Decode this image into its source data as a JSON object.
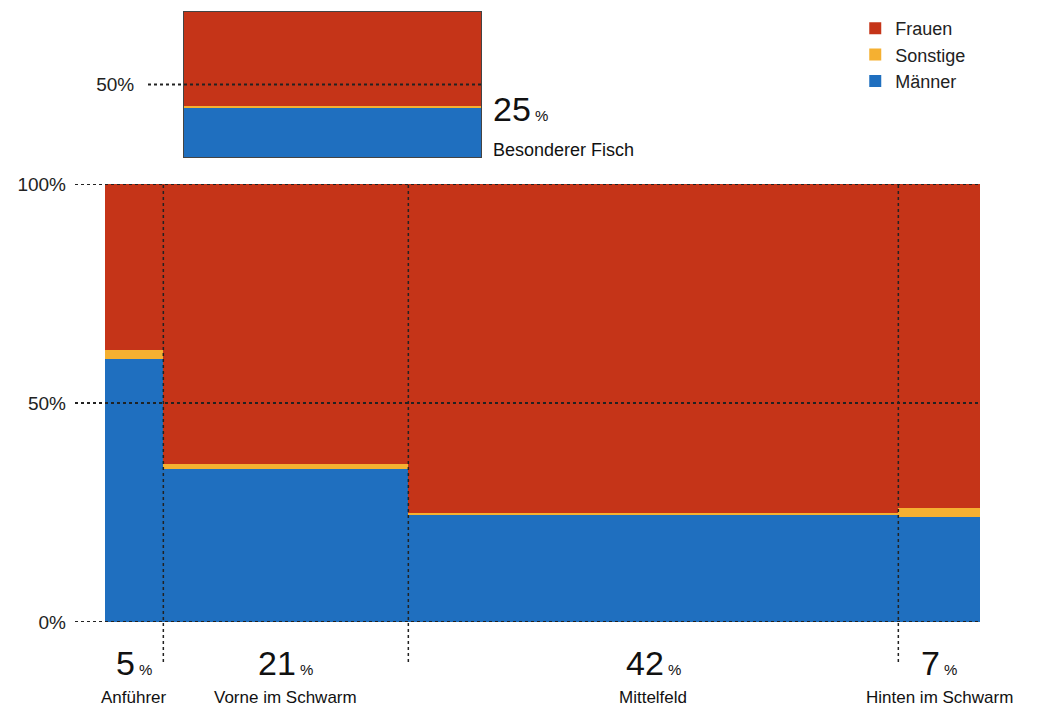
{
  "chart_data": [
    {
      "type": "marimekko",
      "categories": [
        "Besonderer Fisch"
      ],
      "widths": [
        25
      ],
      "width_labels": [
        "25 %"
      ],
      "series": [
        {
          "name": "Männer",
          "color": "#1f6fbf",
          "values": [
            34
          ]
        },
        {
          "name": "Sonstige",
          "color": "#f5b031",
          "values": [
            1
          ]
        },
        {
          "name": "Frauen",
          "color": "#c53418",
          "values": [
            65
          ]
        }
      ],
      "xlim": [
        0,
        25
      ],
      "ylim": [
        0,
        100
      ],
      "yticks": [
        {
          "value": 50,
          "label": "50%"
        }
      ],
      "stacked": true,
      "tick_labels": "y"
    },
    {
      "type": "marimekko",
      "categories": [
        "Anführer",
        "Vorne im Schwarm",
        "Mittelfeld",
        "Hinten im Schwarm"
      ],
      "widths": [
        5,
        21,
        42,
        7
      ],
      "width_labels": [
        "5 %",
        "21 %",
        "42 %",
        "7 %"
      ],
      "series": [
        {
          "name": "Männer",
          "color": "#1f6fbf",
          "values": [
            60,
            35,
            24.5,
            24
          ]
        },
        {
          "name": "Sonstige",
          "color": "#f5b031",
          "values": [
            2,
            1,
            0.5,
            2
          ]
        },
        {
          "name": "Frauen",
          "color": "#c53418",
          "values": [
            38,
            64,
            75,
            74
          ]
        }
      ],
      "xlim": [
        0,
        75
      ],
      "ylim": [
        0,
        100
      ],
      "yticks": [
        {
          "value": 0,
          "label": "0%"
        },
        {
          "value": 50,
          "label": "50%"
        },
        {
          "value": 100,
          "label": "100%"
        }
      ],
      "stacked": true,
      "tick_labels": "y",
      "legend": "top right"
    }
  ]
}
